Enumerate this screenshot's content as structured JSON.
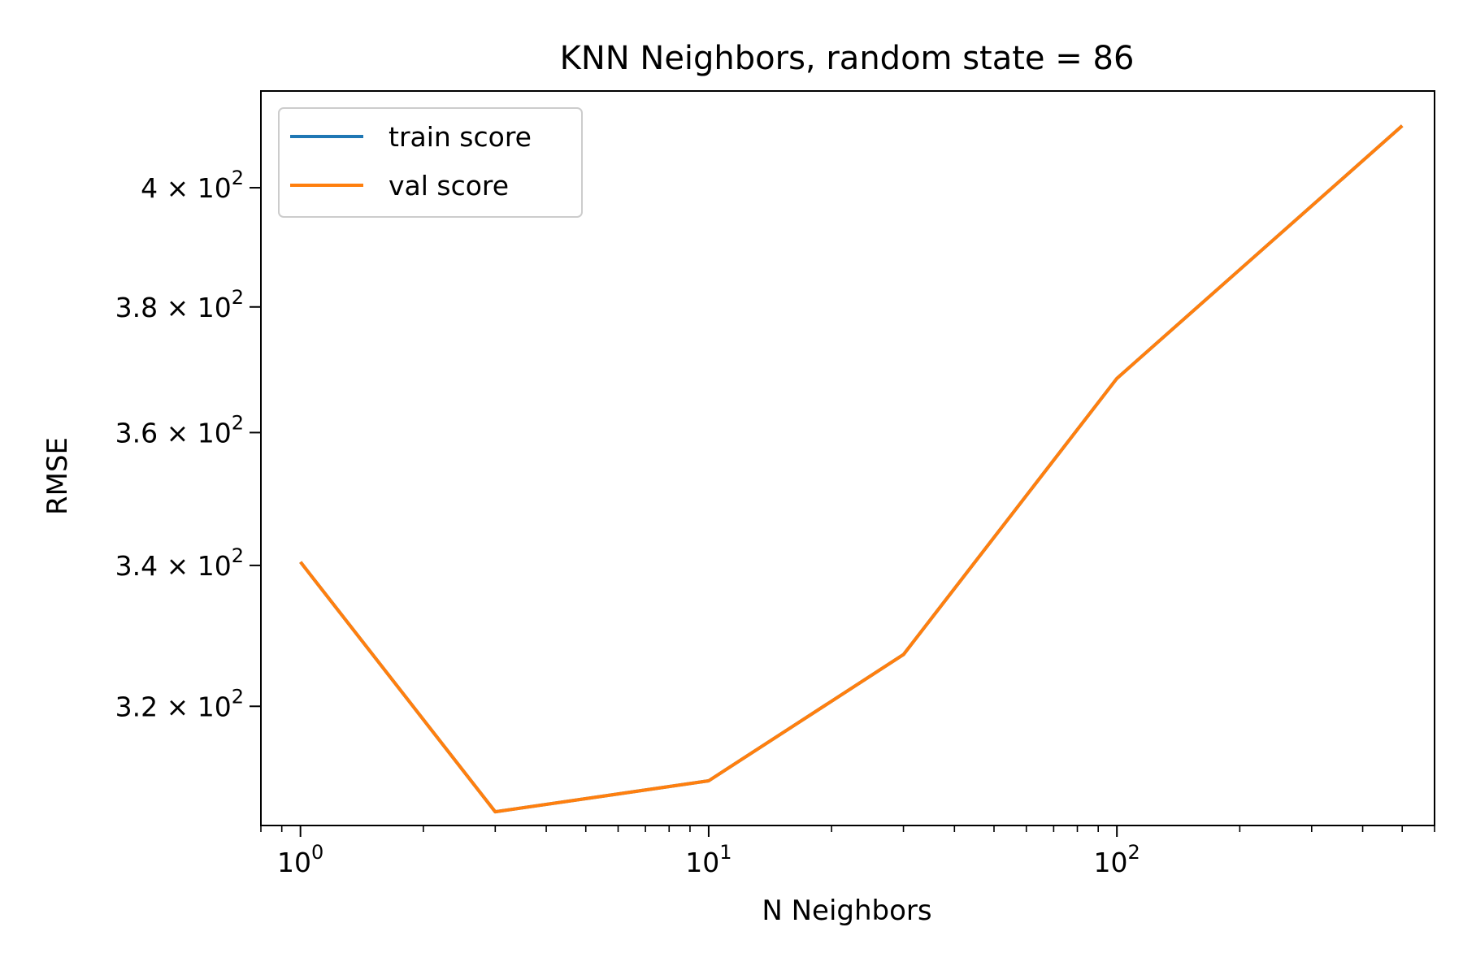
{
  "chart_data": {
    "type": "line",
    "title": "KNN Neighbors, random state = 86",
    "xlabel": "N Neighbors",
    "ylabel": "RMSE",
    "xscale": "log",
    "yscale": "log",
    "xlim": [
      0.8,
      600
    ],
    "ylim": [
      304,
      417
    ],
    "grid": false,
    "legend_position": "upper-left",
    "x_ticks": [
      {
        "value": 1,
        "base": "10",
        "exp": "0"
      },
      {
        "value": 10,
        "base": "10",
        "exp": "1"
      },
      {
        "value": 100,
        "base": "10",
        "exp": "2"
      }
    ],
    "y_ticks": [
      {
        "value": 320,
        "mantissa": "3.2",
        "base": "10",
        "exp": "2"
      },
      {
        "value": 340,
        "mantissa": "3.4",
        "base": "10",
        "exp": "2"
      },
      {
        "value": 360,
        "mantissa": "3.6",
        "base": "10",
        "exp": "2"
      },
      {
        "value": 380,
        "mantissa": "3.8",
        "base": "10",
        "exp": "2"
      },
      {
        "value": 400,
        "mantissa": "4",
        "base": "10",
        "exp": "2"
      }
    ],
    "series": [
      {
        "name": "train score",
        "color": "#1f77b4",
        "x": [
          1,
          3,
          10,
          30,
          100,
          500
        ],
        "y": [
          340.5,
          305.8,
          309.9,
          327.2,
          368.5,
          410.8
        ]
      },
      {
        "name": "val score",
        "color": "#ff7f0e",
        "x": [
          1,
          3,
          10,
          30,
          100,
          500
        ],
        "y": [
          340.5,
          305.8,
          309.9,
          327.2,
          368.5,
          410.8
        ]
      }
    ]
  }
}
